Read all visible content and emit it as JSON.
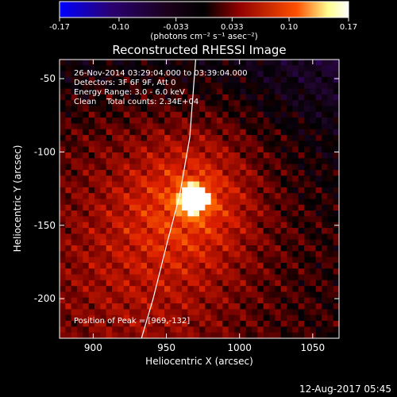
{
  "chart_data": {
    "type": "heatmap",
    "title": "Reconstructed RHESSI Image",
    "colorbar": {
      "ticks": [
        "-0.17",
        "-0.10",
        "-0.033",
        "0.033",
        "0.10",
        "0.17"
      ],
      "tick_values": [
        -0.17,
        -0.1,
        -0.033,
        0.033,
        0.1,
        0.17
      ],
      "range": [
        -0.17,
        0.17
      ],
      "label": "(photons cm⁻² s⁻¹ asec⁻²)",
      "colormap": [
        "#0000ff",
        "#300060",
        "#000000",
        "#900000",
        "#ff5000",
        "#ffffa0",
        "#ffffff"
      ]
    },
    "xlabel": "Heliocentric X (arcsec)",
    "ylabel": "Heliocentric Y (arcsec)",
    "xlim": [
      877,
      1068
    ],
    "ylim": [
      -227,
      -37
    ],
    "xticks": [
      900,
      950,
      1000,
      1050
    ],
    "yticks": [
      -50,
      -100,
      -150,
      -200
    ],
    "annotations": [
      "26-Nov-2014 03:29:04.000 to 03:39:04.000",
      "Detectors: 3F 6F 9F, Att 0",
      "Energy Range: 3.0 - 6.0 keV",
      "Clean    Total counts: 2.34E+04"
    ],
    "peak_label": "Position of Peak = [969,-132]",
    "peak": {
      "x": 969,
      "y": -132,
      "value": 0.17
    },
    "limb_line": [
      [
        933,
        -227
      ],
      [
        941,
        -200
      ],
      [
        951,
        -160
      ],
      [
        959,
        -130
      ],
      [
        966,
        -90
      ],
      [
        970,
        -37
      ]
    ]
  },
  "footer_date": "12-Aug-2017 05:45"
}
